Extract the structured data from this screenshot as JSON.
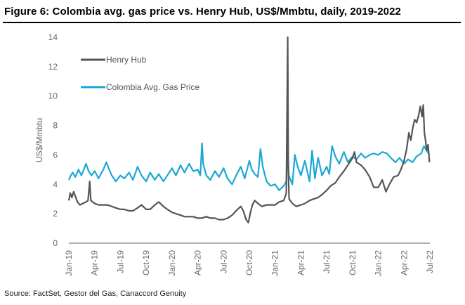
{
  "title": "Figure 6: Colombia avg. gas price vs. Henry Hub, US$/Mmbtu, daily, 2019-2022",
  "source": "Source: FactSet, Gestor del Gas, Canaccord Genuity",
  "chart_data": {
    "type": "line",
    "title": "Figure 6: Colombia avg. gas price vs. Henry Hub, US$/Mmbtu, daily, 2019-2022",
    "xlabel": "",
    "ylabel": "US$/Mmbtu",
    "ylim": [
      0,
      14
    ],
    "yticks": [
      0,
      2,
      4,
      6,
      8,
      10,
      12,
      14
    ],
    "xrange": [
      "2019-01",
      "2022-07"
    ],
    "xtick_labels": [
      "Jan-19",
      "Apr-19",
      "Jul-19",
      "Oct-19",
      "Jan-20",
      "Apr-20",
      "Jul-20",
      "Oct-20",
      "Jan-21",
      "Apr-21",
      "Jul-21",
      "Oct-21",
      "Jan-22",
      "Apr-22",
      "Jul-22"
    ],
    "grid": false,
    "legend": "top-left",
    "series": [
      {
        "name": "Henry Hub",
        "color": "#555555",
        "points": [
          [
            "2019-01-01",
            2.9
          ],
          [
            "2019-01-06",
            3.4
          ],
          [
            "2019-01-12",
            3.1
          ],
          [
            "2019-01-18",
            3.5
          ],
          [
            "2019-01-24",
            3.2
          ],
          [
            "2019-02-01",
            2.8
          ],
          [
            "2019-02-10",
            2.6
          ],
          [
            "2019-02-20",
            2.7
          ],
          [
            "2019-03-01",
            2.8
          ],
          [
            "2019-03-08",
            2.9
          ],
          [
            "2019-03-14",
            4.2
          ],
          [
            "2019-03-18",
            2.9
          ],
          [
            "2019-04-01",
            2.7
          ],
          [
            "2019-04-15",
            2.6
          ],
          [
            "2019-05-01",
            2.6
          ],
          [
            "2019-05-15",
            2.6
          ],
          [
            "2019-06-01",
            2.5
          ],
          [
            "2019-06-15",
            2.4
          ],
          [
            "2019-07-01",
            2.3
          ],
          [
            "2019-07-15",
            2.3
          ],
          [
            "2019-08-01",
            2.2
          ],
          [
            "2019-08-15",
            2.2
          ],
          [
            "2019-09-01",
            2.4
          ],
          [
            "2019-09-15",
            2.6
          ],
          [
            "2019-10-01",
            2.3
          ],
          [
            "2019-10-15",
            2.3
          ],
          [
            "2019-11-01",
            2.6
          ],
          [
            "2019-11-15",
            2.8
          ],
          [
            "2019-12-01",
            2.5
          ],
          [
            "2019-12-15",
            2.3
          ],
          [
            "2020-01-01",
            2.1
          ],
          [
            "2020-01-15",
            2.0
          ],
          [
            "2020-02-01",
            1.9
          ],
          [
            "2020-02-15",
            1.8
          ],
          [
            "2020-03-01",
            1.8
          ],
          [
            "2020-03-15",
            1.8
          ],
          [
            "2020-04-01",
            1.7
          ],
          [
            "2020-04-15",
            1.7
          ],
          [
            "2020-05-01",
            1.8
          ],
          [
            "2020-05-15",
            1.7
          ],
          [
            "2020-06-01",
            1.7
          ],
          [
            "2020-06-15",
            1.6
          ],
          [
            "2020-07-01",
            1.6
          ],
          [
            "2020-07-15",
            1.7
          ],
          [
            "2020-08-01",
            1.9
          ],
          [
            "2020-08-15",
            2.2
          ],
          [
            "2020-09-01",
            2.5
          ],
          [
            "2020-09-10",
            2.2
          ],
          [
            "2020-09-20",
            1.6
          ],
          [
            "2020-09-28",
            1.4
          ],
          [
            "2020-10-05",
            2.1
          ],
          [
            "2020-10-12",
            2.6
          ],
          [
            "2020-10-20",
            2.9
          ],
          [
            "2020-11-01",
            2.7
          ],
          [
            "2020-11-15",
            2.5
          ],
          [
            "2020-12-01",
            2.6
          ],
          [
            "2020-12-15",
            2.6
          ],
          [
            "2021-01-01",
            2.6
          ],
          [
            "2021-01-15",
            2.8
          ],
          [
            "2021-02-01",
            2.9
          ],
          [
            "2021-02-10",
            3.4
          ],
          [
            "2021-02-15",
            14.0
          ],
          [
            "2021-02-17",
            5.0
          ],
          [
            "2021-02-20",
            3.0
          ],
          [
            "2021-03-01",
            2.7
          ],
          [
            "2021-03-15",
            2.5
          ],
          [
            "2021-04-01",
            2.6
          ],
          [
            "2021-04-15",
            2.7
          ],
          [
            "2021-05-01",
            2.9
          ],
          [
            "2021-05-15",
            3.0
          ],
          [
            "2021-06-01",
            3.1
          ],
          [
            "2021-06-15",
            3.3
          ],
          [
            "2021-07-01",
            3.6
          ],
          [
            "2021-07-15",
            3.9
          ],
          [
            "2021-08-01",
            4.1
          ],
          [
            "2021-08-15",
            4.5
          ],
          [
            "2021-09-01",
            4.9
          ],
          [
            "2021-09-15",
            5.3
          ],
          [
            "2021-10-01",
            5.8
          ],
          [
            "2021-10-08",
            6.2
          ],
          [
            "2021-10-15",
            5.5
          ],
          [
            "2021-11-01",
            5.3
          ],
          [
            "2021-11-15",
            5.0
          ],
          [
            "2021-12-01",
            4.5
          ],
          [
            "2021-12-15",
            3.8
          ],
          [
            "2022-01-01",
            3.8
          ],
          [
            "2022-01-15",
            4.3
          ],
          [
            "2022-01-28",
            3.5
          ],
          [
            "2022-02-10",
            4.0
          ],
          [
            "2022-02-25",
            4.5
          ],
          [
            "2022-03-10",
            4.6
          ],
          [
            "2022-03-20",
            5.0
          ],
          [
            "2022-04-01",
            5.6
          ],
          [
            "2022-04-10",
            6.4
          ],
          [
            "2022-04-18",
            7.5
          ],
          [
            "2022-04-25",
            7.0
          ],
          [
            "2022-05-01",
            7.8
          ],
          [
            "2022-05-08",
            8.4
          ],
          [
            "2022-05-15",
            8.2
          ],
          [
            "2022-05-22",
            8.7
          ],
          [
            "2022-05-28",
            9.3
          ],
          [
            "2022-06-04",
            8.6
          ],
          [
            "2022-06-08",
            9.4
          ],
          [
            "2022-06-12",
            7.5
          ],
          [
            "2022-06-16",
            7.0
          ],
          [
            "2022-06-20",
            6.3
          ],
          [
            "2022-06-25",
            6.7
          ],
          [
            "2022-06-30",
            5.5
          ]
        ]
      },
      {
        "name": "Colombia Avg. Gas Price",
        "color": "#1aa7d4",
        "points": [
          [
            "2019-01-01",
            4.3
          ],
          [
            "2019-01-08",
            4.6
          ],
          [
            "2019-01-15",
            4.8
          ],
          [
            "2019-01-24",
            4.5
          ],
          [
            "2019-02-05",
            5.0
          ],
          [
            "2019-02-15",
            4.6
          ],
          [
            "2019-03-01",
            5.4
          ],
          [
            "2019-03-10",
            4.9
          ],
          [
            "2019-03-20",
            4.6
          ],
          [
            "2019-04-01",
            4.9
          ],
          [
            "2019-04-15",
            4.4
          ],
          [
            "2019-05-01",
            5.0
          ],
          [
            "2019-05-12",
            5.5
          ],
          [
            "2019-05-22",
            5.0
          ],
          [
            "2019-06-01",
            4.6
          ],
          [
            "2019-06-15",
            4.2
          ],
          [
            "2019-07-01",
            4.6
          ],
          [
            "2019-07-15",
            4.4
          ],
          [
            "2019-08-01",
            4.8
          ],
          [
            "2019-08-15",
            4.3
          ],
          [
            "2019-09-01",
            5.2
          ],
          [
            "2019-09-15",
            4.6
          ],
          [
            "2019-10-01",
            4.2
          ],
          [
            "2019-10-15",
            4.8
          ],
          [
            "2019-11-01",
            4.3
          ],
          [
            "2019-11-15",
            4.7
          ],
          [
            "2019-12-01",
            4.2
          ],
          [
            "2019-12-15",
            4.6
          ],
          [
            "2020-01-01",
            5.1
          ],
          [
            "2020-01-15",
            4.6
          ],
          [
            "2020-02-01",
            5.3
          ],
          [
            "2020-02-15",
            4.8
          ],
          [
            "2020-03-01",
            5.4
          ],
          [
            "2020-03-15",
            4.9
          ],
          [
            "2020-04-01",
            5.0
          ],
          [
            "2020-04-10",
            4.6
          ],
          [
            "2020-04-16",
            6.8
          ],
          [
            "2020-04-20",
            5.4
          ],
          [
            "2020-05-01",
            4.6
          ],
          [
            "2020-05-15",
            4.3
          ],
          [
            "2020-06-01",
            4.9
          ],
          [
            "2020-06-15",
            4.5
          ],
          [
            "2020-07-01",
            5.1
          ],
          [
            "2020-07-15",
            4.4
          ],
          [
            "2020-08-01",
            4.0
          ],
          [
            "2020-08-15",
            4.6
          ],
          [
            "2020-09-01",
            5.2
          ],
          [
            "2020-09-15",
            4.4
          ],
          [
            "2020-10-01",
            5.6
          ],
          [
            "2020-10-10",
            5.0
          ],
          [
            "2020-10-20",
            4.7
          ],
          [
            "2020-11-01",
            4.5
          ],
          [
            "2020-11-10",
            6.4
          ],
          [
            "2020-11-18",
            5.2
          ],
          [
            "2020-12-01",
            4.2
          ],
          [
            "2020-12-15",
            3.9
          ],
          [
            "2021-01-01",
            4.0
          ],
          [
            "2021-01-15",
            3.6
          ],
          [
            "2021-02-01",
            3.9
          ],
          [
            "2021-02-10",
            4.2
          ],
          [
            "2021-02-15",
            6.8
          ],
          [
            "2021-02-19",
            4.6
          ],
          [
            "2021-03-01",
            4.0
          ],
          [
            "2021-03-10",
            6.0
          ],
          [
            "2021-03-20",
            5.2
          ],
          [
            "2021-04-01",
            4.6
          ],
          [
            "2021-04-15",
            5.6
          ],
          [
            "2021-05-01",
            4.2
          ],
          [
            "2021-05-10",
            6.3
          ],
          [
            "2021-05-20",
            4.4
          ],
          [
            "2021-06-01",
            5.8
          ],
          [
            "2021-06-15",
            4.6
          ],
          [
            "2021-07-01",
            5.2
          ],
          [
            "2021-07-10",
            4.7
          ],
          [
            "2021-07-20",
            6.6
          ],
          [
            "2021-08-01",
            5.9
          ],
          [
            "2021-08-15",
            5.4
          ],
          [
            "2021-09-01",
            6.2
          ],
          [
            "2021-09-15",
            5.5
          ],
          [
            "2021-10-01",
            5.9
          ],
          [
            "2021-10-15",
            5.7
          ],
          [
            "2021-11-01",
            6.1
          ],
          [
            "2021-11-15",
            5.8
          ],
          [
            "2021-12-01",
            6.0
          ],
          [
            "2021-12-15",
            6.1
          ],
          [
            "2022-01-01",
            6.0
          ],
          [
            "2022-01-15",
            6.2
          ],
          [
            "2022-02-01",
            6.1
          ],
          [
            "2022-02-15",
            5.8
          ],
          [
            "2022-03-01",
            5.5
          ],
          [
            "2022-03-15",
            5.8
          ],
          [
            "2022-04-01",
            5.4
          ],
          [
            "2022-04-15",
            5.7
          ],
          [
            "2022-05-01",
            5.5
          ],
          [
            "2022-05-15",
            5.9
          ],
          [
            "2022-06-01",
            6.1
          ],
          [
            "2022-06-10",
            6.6
          ],
          [
            "2022-06-20",
            6.3
          ],
          [
            "2022-06-30",
            6.0
          ]
        ]
      }
    ]
  }
}
